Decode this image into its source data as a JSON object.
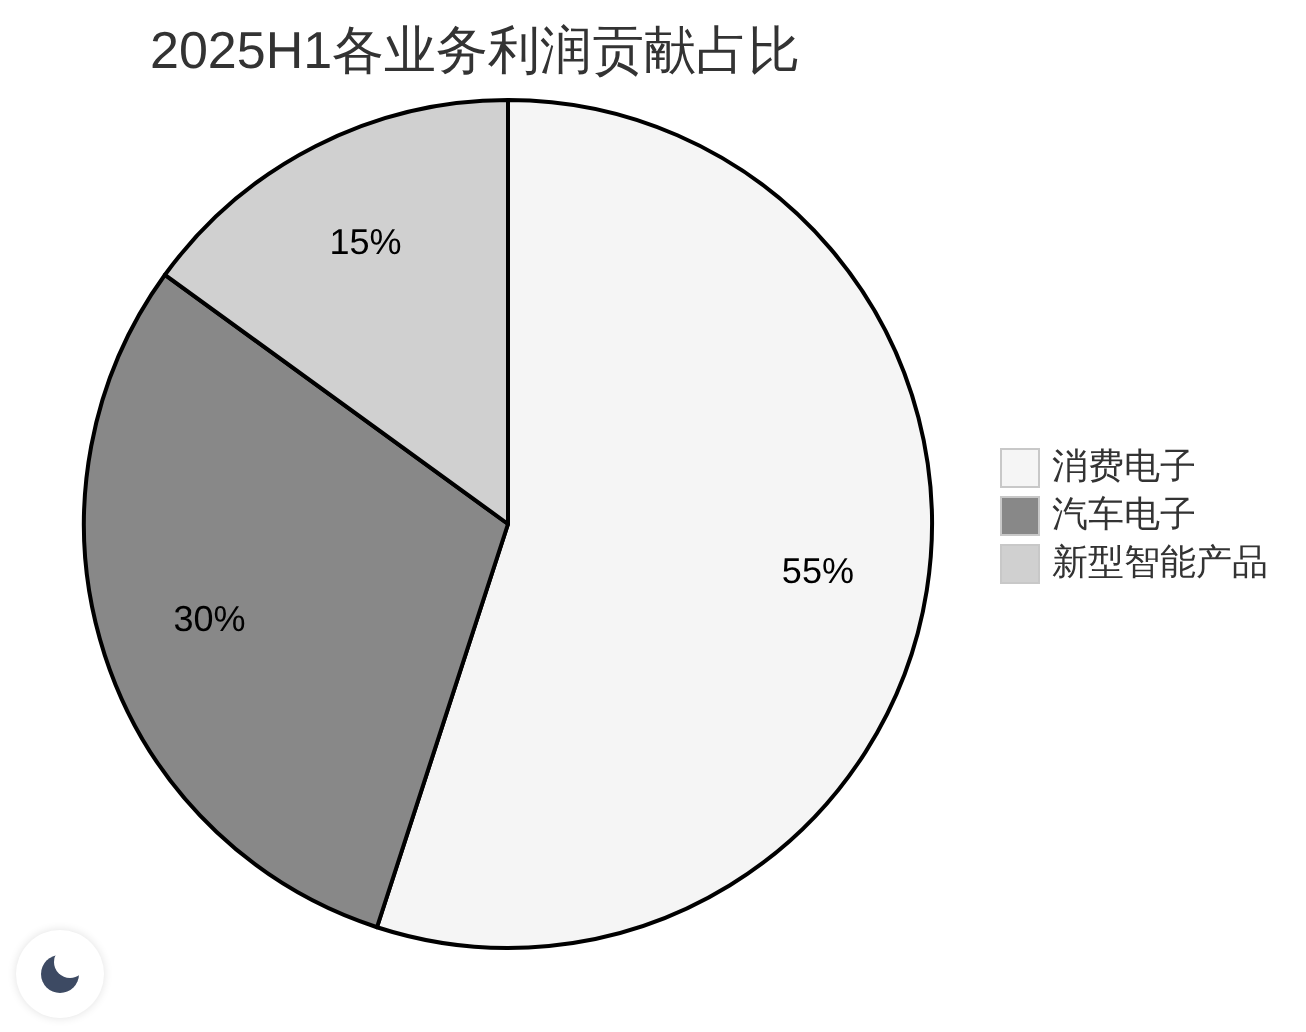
{
  "chart_data": {
    "type": "pie",
    "title": "2025H1各业务利润贡献占比",
    "categories": [
      "消费电子",
      "汽车电子",
      "新型智能产品"
    ],
    "values": [
      55,
      30,
      15
    ],
    "colors": [
      "#f5f5f5",
      "#888888",
      "#d0d0d0"
    ],
    "value_labels": [
      "55%",
      "30%",
      "15%"
    ],
    "legend": "right"
  }
}
